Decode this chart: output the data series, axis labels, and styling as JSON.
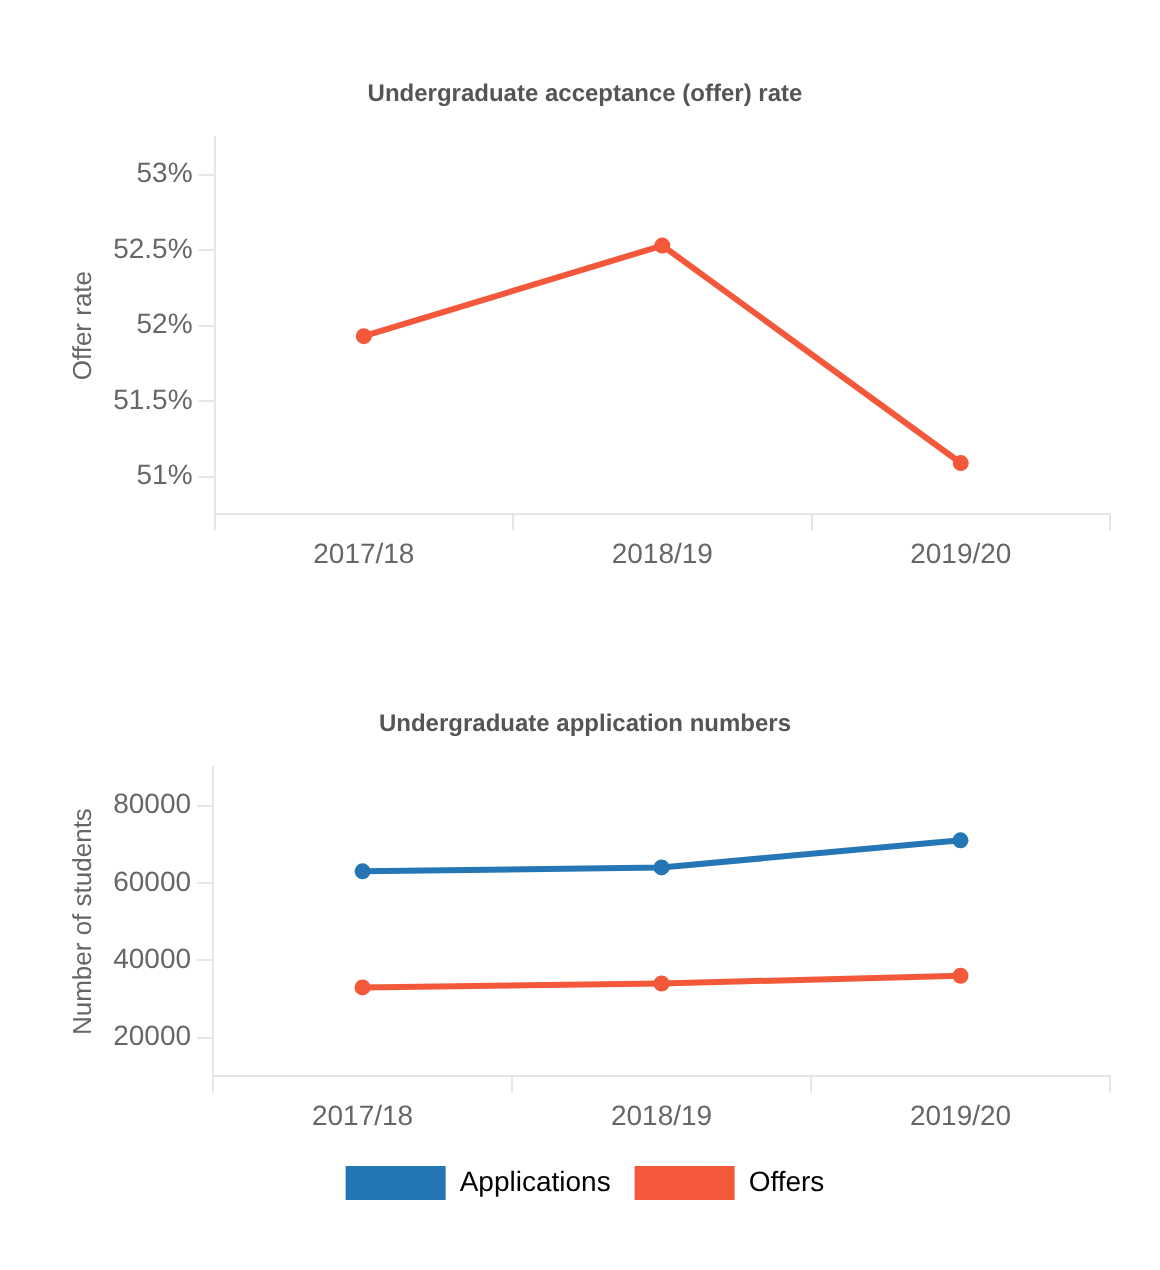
{
  "chart_data": [
    {
      "type": "line",
      "title": "Undergraduate acceptance (offer) rate",
      "ylabel": "Offer rate",
      "categories": [
        "2017/18",
        "2018/19",
        "2019/20"
      ],
      "series": [
        {
          "color": "#f4583a",
          "values": [
            51.93,
            52.53,
            51.09
          ]
        }
      ],
      "ylim": [
        50.75,
        53.25
      ],
      "yticks": [
        {
          "value": 51,
          "label": "51%"
        },
        {
          "value": 51.5,
          "label": "51.5%"
        },
        {
          "value": 52,
          "label": "52%"
        },
        {
          "value": 52.5,
          "label": "52.5%"
        },
        {
          "value": 53,
          "label": "53%"
        }
      ],
      "grid": false,
      "legend": false,
      "marker": "circle"
    },
    {
      "type": "line",
      "title": "Undergraduate application numbers",
      "ylabel": "Number of students",
      "categories": [
        "2017/18",
        "2018/19",
        "2019/20"
      ],
      "series": [
        {
          "name": "Applications",
          "color": "#2476b4",
          "values": [
            63000,
            64000,
            71000
          ]
        },
        {
          "name": "Offers",
          "color": "#f4583a",
          "values": [
            33000,
            34000,
            36000
          ]
        }
      ],
      "ylim": [
        10000,
        90000
      ],
      "yticks": [
        20000,
        40000,
        60000,
        80000
      ],
      "grid": false,
      "legend": "bottom",
      "marker": "circle"
    }
  ]
}
